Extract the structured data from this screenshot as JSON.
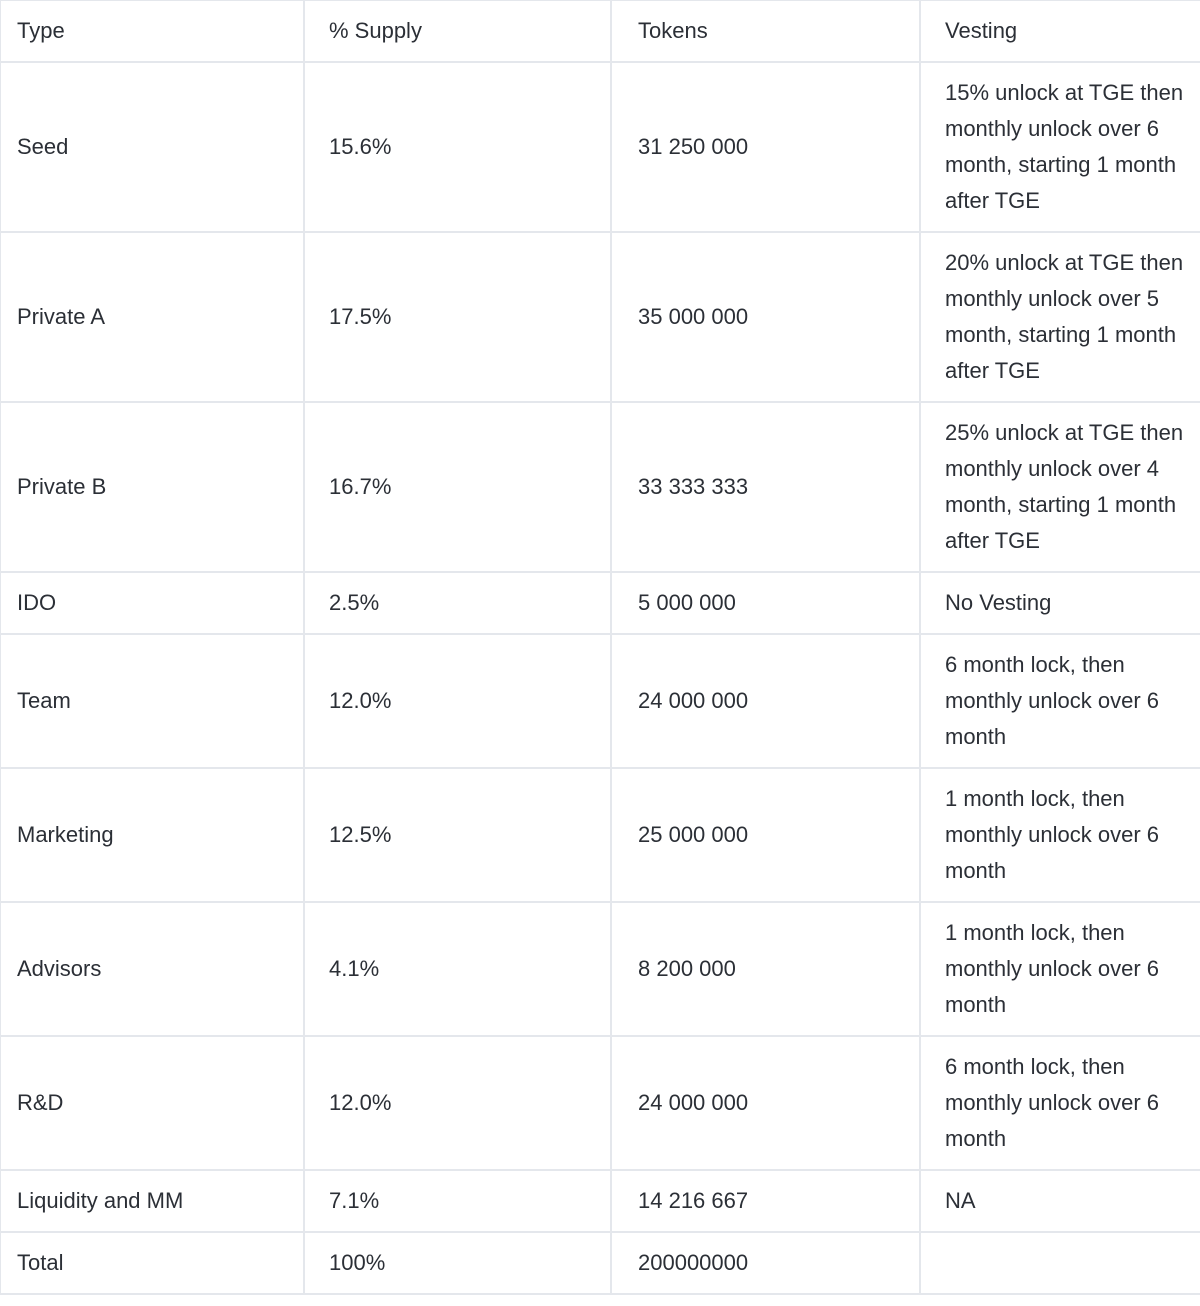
{
  "table": {
    "headers": {
      "type": "Type",
      "supply": "% Supply",
      "tokens": "Tokens",
      "vesting": "Vesting"
    },
    "rows": [
      {
        "type": "Seed",
        "supply": "15.6%",
        "tokens": "31 250 000",
        "vesting": "15% unlock at TGE then monthly unlock over 6 month, starting 1 month after TGE"
      },
      {
        "type": "Private A",
        "supply": "17.5%",
        "tokens": "35 000 000",
        "vesting": "20% unlock at TGE then monthly unlock over 5 month, starting 1 month after TGE"
      },
      {
        "type": "Private B",
        "supply": "16.7%",
        "tokens": "33 333 333",
        "vesting": "25% unlock at TGE then monthly unlock over 4 month, starting 1 month after TGE"
      },
      {
        "type": "IDO",
        "supply": "2.5%",
        "tokens": "5 000 000",
        "vesting": "No Vesting"
      },
      {
        "type": "Team",
        "supply": "12.0%",
        "tokens": "24 000 000",
        "vesting": "6 month lock, then monthly unlock over 6 month"
      },
      {
        "type": "Marketing",
        "supply": "12.5%",
        "tokens": "25 000 000",
        "vesting": "1 month lock, then monthly unlock over 6 month"
      },
      {
        "type": "Advisors",
        "supply": "4.1%",
        "tokens": "8 200 000",
        "vesting": "1 month lock, then monthly unlock over 6 month"
      },
      {
        "type": "R&D",
        "supply": "12.0%",
        "tokens": "24 000 000",
        "vesting": "6 month lock, then monthly unlock over 6 month"
      },
      {
        "type": "Liquidity and MM",
        "supply": "7.1%",
        "tokens": "14 216 667",
        "vesting": "NA"
      },
      {
        "type": "Total",
        "supply": "100%",
        "tokens": "200000000",
        "vesting": ""
      }
    ]
  }
}
